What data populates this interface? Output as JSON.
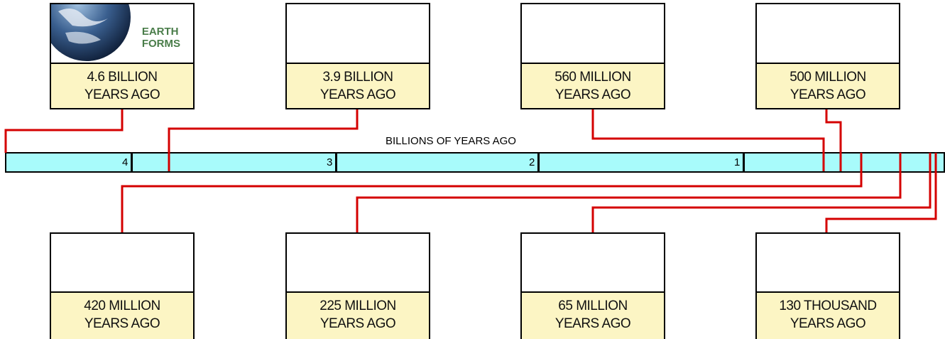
{
  "timeline": {
    "title": "BILLIONS OF YEARS AGO",
    "ticks": [
      "4",
      "3",
      "2",
      "1"
    ]
  },
  "cards": [
    {
      "caption": [
        "EARTH",
        "FORMS"
      ],
      "label": [
        "4.6 BILLION",
        "YEARS AGO"
      ]
    },
    {
      "label": [
        "3.9 BILLION",
        "YEARS AGO"
      ]
    },
    {
      "label": [
        "560 MILLION",
        "YEARS AGO"
      ]
    },
    {
      "label": [
        "500 MILLION",
        "YEARS AGO"
      ]
    },
    {
      "label": [
        "420 MILLION",
        "YEARS AGO"
      ]
    },
    {
      "label": [
        "225 MILLION",
        "YEARS AGO"
      ]
    },
    {
      "label": [
        "65 MILLION",
        "YEARS AGO"
      ]
    },
    {
      "label": [
        "130 THOUSAND",
        "YEARS AGO"
      ]
    }
  ]
}
